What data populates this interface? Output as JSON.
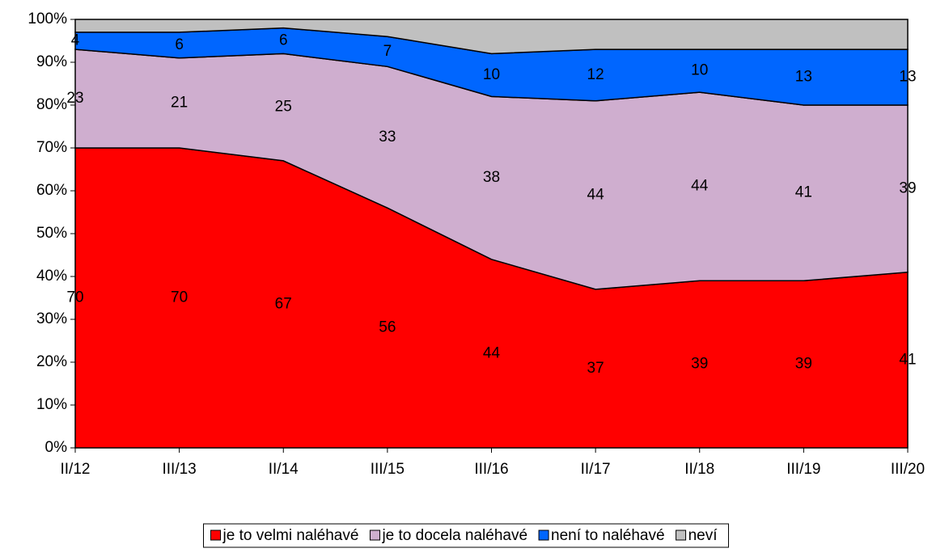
{
  "chart_data": {
    "type": "stacked_area",
    "categories": [
      "II/12",
      "III/13",
      "II/14",
      "III/15",
      "III/16",
      "II/17",
      "II/18",
      "III/19",
      "III/20"
    ],
    "series": [
      {
        "name": "je to velmi naléhavé",
        "color": "#ff0000",
        "show_labels": true,
        "values": [
          70,
          70,
          67,
          56,
          44,
          37,
          39,
          39,
          41
        ]
      },
      {
        "name": "je to docela naléhavé",
        "color": "#cfaecf",
        "show_labels": true,
        "values": [
          23,
          21,
          25,
          33,
          38,
          44,
          44,
          41,
          39
        ]
      },
      {
        "name": "není to naléhavé",
        "color": "#0066ff",
        "show_labels": true,
        "values": [
          4,
          6,
          6,
          7,
          10,
          12,
          10,
          13,
          13
        ]
      },
      {
        "name": "neví",
        "color": "#c0c0c0",
        "show_labels": false,
        "values": [
          3,
          3,
          2,
          4,
          8,
          7,
          7,
          7,
          7
        ]
      }
    ],
    "ylim": [
      0,
      100
    ],
    "yticks": [
      {
        "value": 0,
        "label": "0%"
      },
      {
        "value": 10,
        "label": "10%"
      },
      {
        "value": 20,
        "label": "20%"
      },
      {
        "value": 30,
        "label": "30%"
      },
      {
        "value": 40,
        "label": "40%"
      },
      {
        "value": 50,
        "label": "50%"
      },
      {
        "value": 60,
        "label": "60%"
      },
      {
        "value": 70,
        "label": "70%"
      },
      {
        "value": 80,
        "label": "80%"
      },
      {
        "value": 90,
        "label": "90%"
      },
      {
        "value": 100,
        "label": "100%"
      }
    ],
    "legend": "bottom"
  }
}
